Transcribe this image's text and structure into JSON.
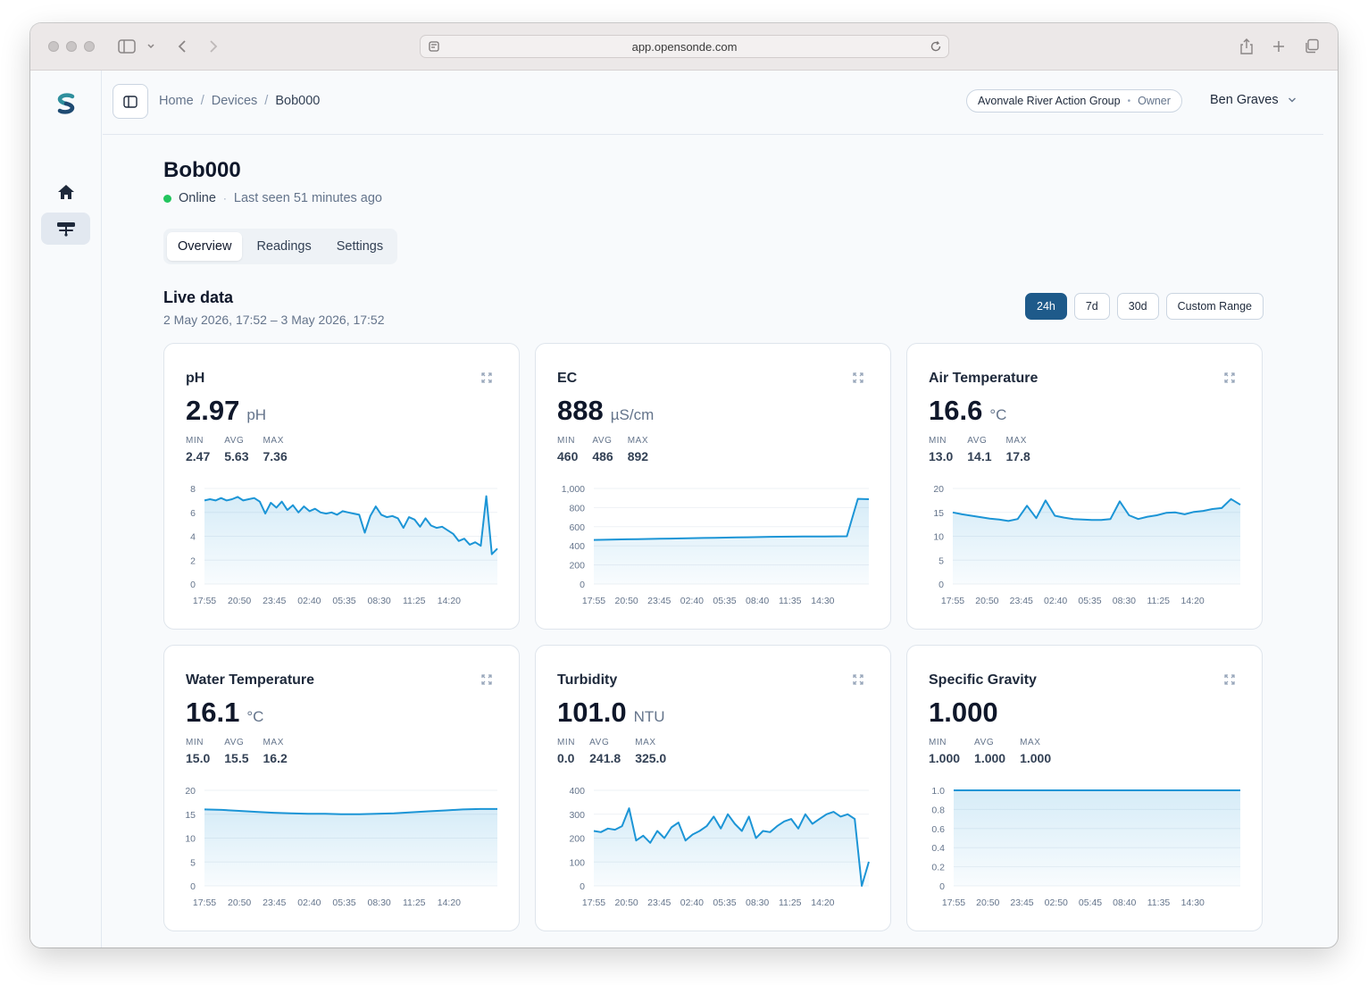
{
  "browser": {
    "url": "app.opensonde.com"
  },
  "breadcrumb": {
    "home": "Home",
    "devices": "Devices",
    "current": "Bob000",
    "sep": "/"
  },
  "org": {
    "name": "Avonvale River Action Group",
    "role": "Owner",
    "dot": "•"
  },
  "user": {
    "name": "Ben Graves"
  },
  "device": {
    "name": "Bob000",
    "status": "Online",
    "sep": "·",
    "last_seen": "Last seen 51 minutes ago"
  },
  "tabs": [
    "Overview",
    "Readings",
    "Settings"
  ],
  "live": {
    "title": "Live data",
    "range": "2 May 2026, 17:52 – 3 May 2026, 17:52",
    "buttons": [
      "24h",
      "7d",
      "30d",
      "Custom Range"
    ],
    "active_button": "24h"
  },
  "colors": {
    "accent": "#1e5a8a",
    "line": "#1c95d6",
    "online": "#22c55e"
  },
  "cards": [
    {
      "title": "pH",
      "value": "2.97",
      "unit": "pH",
      "stats": [
        {
          "label": "MIN",
          "value": "2.47"
        },
        {
          "label": "AVG",
          "value": "5.63"
        },
        {
          "label": "MAX",
          "value": "7.36"
        }
      ]
    },
    {
      "title": "EC",
      "value": "888",
      "unit": "µS/cm",
      "stats": [
        {
          "label": "MIN",
          "value": "460"
        },
        {
          "label": "AVG",
          "value": "486"
        },
        {
          "label": "MAX",
          "value": "892"
        }
      ]
    },
    {
      "title": "Air Temperature",
      "value": "16.6",
      "unit": "°C",
      "stats": [
        {
          "label": "MIN",
          "value": "13.0"
        },
        {
          "label": "AVG",
          "value": "14.1"
        },
        {
          "label": "MAX",
          "value": "17.8"
        }
      ]
    },
    {
      "title": "Water Temperature",
      "value": "16.1",
      "unit": "°C",
      "stats": [
        {
          "label": "MIN",
          "value": "15.0"
        },
        {
          "label": "AVG",
          "value": "15.5"
        },
        {
          "label": "MAX",
          "value": "16.2"
        }
      ]
    },
    {
      "title": "Turbidity",
      "value": "101.0",
      "unit": "NTU",
      "stats": [
        {
          "label": "MIN",
          "value": "0.0"
        },
        {
          "label": "AVG",
          "value": "241.8"
        },
        {
          "label": "MAX",
          "value": "325.0"
        }
      ]
    },
    {
      "title": "Specific Gravity",
      "value": "1.000",
      "unit": "",
      "stats": [
        {
          "label": "MIN",
          "value": "1.000"
        },
        {
          "label": "AVG",
          "value": "1.000"
        },
        {
          "label": "MAX",
          "value": "1.000"
        }
      ]
    }
  ],
  "chart_data": [
    {
      "type": "area",
      "title": "pH",
      "ylim": [
        0,
        8
      ],
      "y_ticks": [
        "0",
        "2",
        "4",
        "6",
        "8"
      ],
      "x_ticks": [
        "17:55",
        "20:50",
        "23:45",
        "02:40",
        "05:35",
        "08:30",
        "11:25",
        "14:20"
      ],
      "values": [
        7.0,
        7.1,
        7.0,
        7.2,
        7.0,
        7.1,
        7.3,
        7.0,
        7.1,
        7.2,
        6.9,
        5.9,
        6.8,
        6.4,
        6.9,
        6.2,
        6.6,
        6.0,
        6.5,
        6.1,
        6.3,
        6.0,
        5.9,
        6.0,
        5.8,
        6.1,
        6.0,
        5.9,
        5.8,
        4.3,
        5.7,
        6.5,
        5.8,
        5.6,
        5.7,
        5.5,
        4.7,
        5.6,
        5.4,
        4.8,
        5.5,
        4.9,
        4.7,
        4.8,
        4.5,
        4.2,
        3.6,
        3.8,
        3.3,
        3.5,
        3.2,
        7.36,
        2.5,
        2.97
      ]
    },
    {
      "type": "area",
      "title": "EC",
      "ylim": [
        0,
        1000
      ],
      "y_ticks": [
        "0",
        "200",
        "400",
        "600",
        "800",
        "1,000"
      ],
      "x_ticks": [
        "17:55",
        "20:50",
        "23:45",
        "02:40",
        "05:35",
        "08:40",
        "11:35",
        "14:30"
      ],
      "values": [
        462,
        464,
        466,
        468,
        470,
        472,
        474,
        476,
        478,
        480,
        482,
        484,
        486,
        488,
        490,
        492,
        494,
        495,
        496,
        497,
        498,
        498,
        499,
        500,
        892,
        888
      ]
    },
    {
      "type": "area",
      "title": "Air Temperature",
      "ylim": [
        0,
        20
      ],
      "y_ticks": [
        "0",
        "5",
        "10",
        "15",
        "20"
      ],
      "x_ticks": [
        "17:55",
        "20:50",
        "23:45",
        "02:40",
        "05:35",
        "08:30",
        "11:25",
        "14:20"
      ],
      "values": [
        15.0,
        14.6,
        14.3,
        14.0,
        13.7,
        13.5,
        13.2,
        13.6,
        16.4,
        13.8,
        17.5,
        14.3,
        13.9,
        13.6,
        13.5,
        13.4,
        13.4,
        13.6,
        17.3,
        14.4,
        13.6,
        14.1,
        14.4,
        14.9,
        15.0,
        14.6,
        15.1,
        15.3,
        15.7,
        15.9,
        17.8,
        16.6
      ]
    },
    {
      "type": "area",
      "title": "Water Temperature",
      "ylim": [
        0,
        20
      ],
      "y_ticks": [
        "0",
        "5",
        "10",
        "15",
        "20"
      ],
      "x_ticks": [
        "17:55",
        "20:50",
        "23:45",
        "02:40",
        "05:35",
        "08:30",
        "11:25",
        "14:20"
      ],
      "values": [
        16.0,
        15.9,
        15.7,
        15.5,
        15.3,
        15.2,
        15.1,
        15.1,
        15.0,
        15.0,
        15.1,
        15.2,
        15.4,
        15.6,
        15.8,
        16.0,
        16.1,
        16.1
      ]
    },
    {
      "type": "area",
      "title": "Turbidity",
      "ylim": [
        0,
        400
      ],
      "y_ticks": [
        "0",
        "100",
        "200",
        "300",
        "400"
      ],
      "x_ticks": [
        "17:55",
        "20:50",
        "23:45",
        "02:40",
        "05:35",
        "08:30",
        "11:25",
        "14:20"
      ],
      "values": [
        230,
        225,
        240,
        235,
        250,
        325,
        190,
        210,
        180,
        230,
        200,
        245,
        265,
        190,
        215,
        230,
        250,
        290,
        240,
        300,
        260,
        230,
        290,
        200,
        230,
        225,
        250,
        270,
        280,
        240,
        300,
        260,
        280,
        300,
        310,
        290,
        300,
        280,
        0,
        101
      ]
    },
    {
      "type": "area",
      "title": "Specific Gravity",
      "ylim": [
        0,
        1.0
      ],
      "y_ticks": [
        "0",
        "0.2",
        "0.4",
        "0.6",
        "0.8",
        "1.0"
      ],
      "x_ticks": [
        "17:55",
        "20:50",
        "23:45",
        "02:50",
        "05:45",
        "08:40",
        "11:35",
        "14:30"
      ],
      "values": [
        1.0,
        1.0
      ]
    }
  ]
}
